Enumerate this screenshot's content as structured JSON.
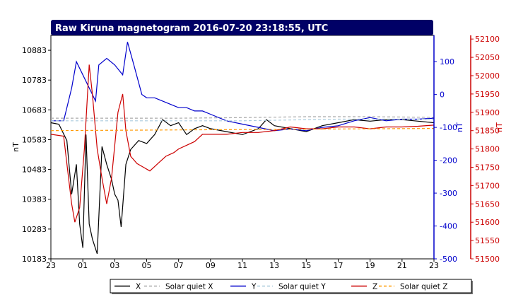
{
  "chart_data": {
    "type": "line",
    "title": "Raw Kiruna magnetogram 2016-07-20 23:18:55, UTC",
    "x_ticks": [
      "23",
      "01",
      "03",
      "05",
      "07",
      "09",
      "11",
      "13",
      "15",
      "17",
      "19",
      "21",
      "23"
    ],
    "x_hours_since_start": [
      0,
      2,
      4,
      6,
      8,
      10,
      12,
      14,
      16,
      18,
      20,
      22,
      24
    ],
    "axes": {
      "left": {
        "label": "nT",
        "min": 10183,
        "max": 10933,
        "ticks": [
          10183,
          10283,
          10383,
          10483,
          10583,
          10683,
          10783,
          10883
        ],
        "color": "#000000"
      },
      "right1": {
        "label": "nT",
        "min": -500,
        "max": 180,
        "ticks": [
          -500,
          -400,
          -300,
          -200,
          -100,
          0,
          100
        ],
        "color": "#0000cc"
      },
      "right2": {
        "label": "nT",
        "min": 51500,
        "max": 52110,
        "ticks": [
          51500,
          51550,
          51600,
          51650,
          51700,
          51750,
          51800,
          51850,
          51900,
          51950,
          52000,
          52050,
          52100
        ],
        "color": "#cc0000"
      }
    },
    "grid": true,
    "legend_position": "bottom-right",
    "series": [
      {
        "name": "X",
        "axis": "left",
        "color": "#000000",
        "style": "solid",
        "points": [
          [
            0,
            10640
          ],
          [
            0.5,
            10635
          ],
          [
            1,
            10580
          ],
          [
            1.3,
            10400
          ],
          [
            1.6,
            10500
          ],
          [
            1.8,
            10300
          ],
          [
            2,
            10220
          ],
          [
            2.2,
            10600
          ],
          [
            2.4,
            10300
          ],
          [
            2.6,
            10250
          ],
          [
            2.9,
            10200
          ],
          [
            3.2,
            10560
          ],
          [
            3.5,
            10500
          ],
          [
            3.8,
            10450
          ],
          [
            4,
            10400
          ],
          [
            4.2,
            10380
          ],
          [
            4.4,
            10290
          ],
          [
            4.7,
            10500
          ],
          [
            5,
            10550
          ],
          [
            5.5,
            10580
          ],
          [
            6,
            10570
          ],
          [
            6.5,
            10600
          ],
          [
            7,
            10650
          ],
          [
            7.5,
            10630
          ],
          [
            8,
            10640
          ],
          [
            8.5,
            10600
          ],
          [
            9,
            10620
          ],
          [
            9.5,
            10630
          ],
          [
            10,
            10620
          ],
          [
            11,
            10610
          ],
          [
            12,
            10600
          ],
          [
            13,
            10620
          ],
          [
            13.5,
            10650
          ],
          [
            14,
            10630
          ],
          [
            15,
            10620
          ],
          [
            16,
            10610
          ],
          [
            17,
            10630
          ],
          [
            18,
            10640
          ],
          [
            19,
            10650
          ],
          [
            20,
            10645
          ],
          [
            21,
            10650
          ],
          [
            22,
            10650
          ],
          [
            23,
            10645
          ],
          [
            24,
            10640
          ]
        ]
      },
      {
        "name": "Solar quiet X",
        "axis": "left",
        "color": "#aaaaaa",
        "style": "dashed",
        "points": [
          [
            0,
            10655
          ],
          [
            4,
            10655
          ],
          [
            8,
            10655
          ],
          [
            12,
            10657
          ],
          [
            16,
            10660
          ],
          [
            20,
            10660
          ],
          [
            24,
            10658
          ]
        ]
      },
      {
        "name": "Y",
        "axis": "right1",
        "color": "#0000cc",
        "style": "solid",
        "points": [
          [
            0,
            -80
          ],
          [
            0.8,
            -80
          ],
          [
            1.3,
            20
          ],
          [
            1.6,
            100
          ],
          [
            2,
            60
          ],
          [
            2.5,
            10
          ],
          [
            2.8,
            -20
          ],
          [
            3,
            90
          ],
          [
            3.5,
            110
          ],
          [
            4,
            90
          ],
          [
            4.5,
            60
          ],
          [
            4.8,
            160
          ],
          [
            5.2,
            90
          ],
          [
            5.7,
            0
          ],
          [
            6,
            -10
          ],
          [
            6.5,
            -10
          ],
          [
            7,
            -20
          ],
          [
            7.5,
            -30
          ],
          [
            8,
            -40
          ],
          [
            8.5,
            -40
          ],
          [
            9,
            -50
          ],
          [
            9.5,
            -50
          ],
          [
            10,
            -60
          ],
          [
            11,
            -80
          ],
          [
            12,
            -90
          ],
          [
            13,
            -100
          ],
          [
            14,
            -110
          ],
          [
            15,
            -105
          ],
          [
            16,
            -110
          ],
          [
            17,
            -100
          ],
          [
            18,
            -95
          ],
          [
            19,
            -80
          ],
          [
            20,
            -70
          ],
          [
            21,
            -80
          ],
          [
            22,
            -75
          ],
          [
            23,
            -75
          ],
          [
            24,
            -72
          ]
        ]
      },
      {
        "name": "Solar quiet Y",
        "axis": "right1",
        "color": "#aaccdd",
        "style": "dashed",
        "points": [
          [
            0,
            -80
          ],
          [
            6,
            -80
          ],
          [
            12,
            -80
          ],
          [
            18,
            -75
          ],
          [
            24,
            -75
          ]
        ]
      },
      {
        "name": "Z",
        "axis": "right2",
        "color": "#cc0000",
        "style": "solid",
        "points": [
          [
            0,
            51840
          ],
          [
            0.8,
            51835
          ],
          [
            1,
            51760
          ],
          [
            1.3,
            51650
          ],
          [
            1.5,
            51600
          ],
          [
            1.8,
            51640
          ],
          [
            2.1,
            51800
          ],
          [
            2.4,
            52030
          ],
          [
            2.6,
            51950
          ],
          [
            2.9,
            51800
          ],
          [
            3.2,
            51720
          ],
          [
            3.5,
            51650
          ],
          [
            3.8,
            51720
          ],
          [
            4.2,
            51900
          ],
          [
            4.5,
            51950
          ],
          [
            4.7,
            51850
          ],
          [
            5,
            51780
          ],
          [
            5.4,
            51760
          ],
          [
            5.8,
            51750
          ],
          [
            6.2,
            51740
          ],
          [
            6.7,
            51760
          ],
          [
            7.2,
            51780
          ],
          [
            7.7,
            51790
          ],
          [
            8,
            51800
          ],
          [
            8.5,
            51810
          ],
          [
            9,
            51820
          ],
          [
            9.5,
            51840
          ],
          [
            10,
            51840
          ],
          [
            11,
            51840
          ],
          [
            12,
            51845
          ],
          [
            13,
            51845
          ],
          [
            14,
            51850
          ],
          [
            15,
            51860
          ],
          [
            16,
            51855
          ],
          [
            17,
            51855
          ],
          [
            18,
            51860
          ],
          [
            19,
            51860
          ],
          [
            20,
            51855
          ],
          [
            21,
            51860
          ],
          [
            22,
            51860
          ],
          [
            23,
            51862
          ],
          [
            24,
            51865
          ]
        ]
      },
      {
        "name": "Solar quiet Z",
        "axis": "right2",
        "color": "#ff9900",
        "style": "dashed",
        "points": [
          [
            0,
            51850
          ],
          [
            8,
            51852
          ],
          [
            16,
            51854
          ],
          [
            24,
            51856
          ]
        ]
      }
    ]
  },
  "legend": {
    "items": [
      {
        "label": "X",
        "color": "#000000",
        "dashed": false
      },
      {
        "label": "Solar quiet X",
        "color": "#aaaaaa",
        "dashed": true
      },
      {
        "label": "Y",
        "color": "#0000cc",
        "dashed": false
      },
      {
        "label": "Solar quiet Y",
        "color": "#aaccdd",
        "dashed": true
      },
      {
        "label": "Z",
        "color": "#cc0000",
        "dashed": false
      },
      {
        "label": "Solar quiet Z",
        "color": "#ff9900",
        "dashed": true
      }
    ]
  }
}
